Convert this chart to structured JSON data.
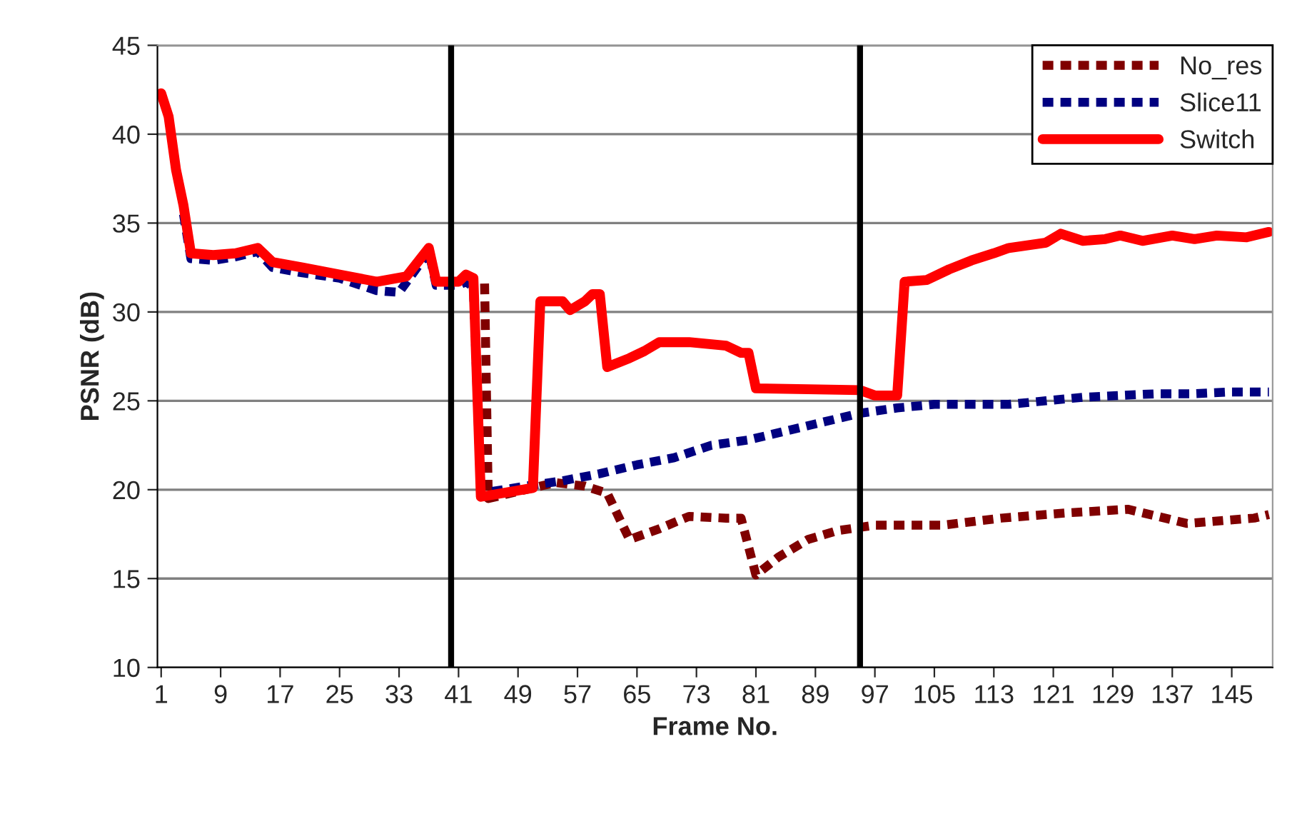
{
  "chart_data": {
    "type": "line",
    "xlabel": "Frame No.",
    "ylabel": "PSNR (dB)",
    "xlim": [
      0.5,
      150.5
    ],
    "xticks": [
      1,
      9,
      17,
      25,
      33,
      41,
      49,
      57,
      65,
      73,
      81,
      89,
      97,
      105,
      113,
      121,
      129,
      137,
      145
    ],
    "ylim": [
      10,
      45
    ],
    "yticks": [
      10,
      15,
      20,
      25,
      30,
      35,
      40,
      45
    ],
    "grid": "y",
    "legend": "top right",
    "marker": "none",
    "ref_lines": [
      {
        "axis": "x",
        "value": 40,
        "color": "#000000",
        "line_style": "solid"
      },
      {
        "axis": "x",
        "value": 95,
        "color": "#000000",
        "line_style": "solid"
      }
    ],
    "series": [
      {
        "name": "No_res",
        "color": "#800000",
        "line_style": "dashed",
        "x": [
          44.5,
          45,
          54,
          58,
          61,
          64,
          68,
          72,
          77,
          79,
          81,
          84,
          88,
          92,
          97,
          106,
          114,
          123,
          131,
          139,
          148,
          150
        ],
        "values": [
          31.6,
          19.5,
          20.4,
          20.2,
          19.8,
          17.2,
          17.8,
          18.5,
          18.4,
          18.4,
          15.2,
          16.2,
          17.2,
          17.7,
          18.0,
          18.0,
          18.4,
          18.7,
          18.9,
          18.1,
          18.4,
          18.6
        ]
      },
      {
        "name": "Slice11",
        "color": "#000080",
        "line_style": "dashed",
        "x": [
          4,
          5,
          8,
          11,
          14,
          16,
          20,
          25,
          30,
          33,
          37,
          38,
          41,
          42,
          43,
          44,
          50,
          55,
          60,
          65,
          70,
          75,
          80,
          85,
          90,
          95,
          100,
          105,
          110,
          115,
          120,
          125,
          130,
          135,
          140,
          145,
          150
        ],
        "values": [
          35.5,
          33.0,
          32.9,
          33.1,
          33.4,
          32.5,
          32.2,
          31.9,
          31.2,
          31.1,
          33.4,
          31.5,
          31.5,
          31.7,
          31.4,
          19.8,
          20.2,
          20.5,
          20.9,
          21.4,
          21.8,
          22.5,
          22.8,
          23.3,
          23.8,
          24.3,
          24.6,
          24.8,
          24.8,
          24.8,
          25.0,
          25.2,
          25.3,
          25.4,
          25.4,
          25.5,
          25.5
        ]
      },
      {
        "name": "Switch",
        "color": "#ff0000",
        "line_style": "solid",
        "x": [
          1,
          2,
          3,
          4,
          5,
          8,
          11,
          14,
          16,
          20,
          25,
          30,
          34,
          37,
          38,
          41,
          42,
          43,
          44,
          51,
          52,
          55,
          56,
          58,
          59,
          60,
          61,
          64,
          66,
          68,
          72,
          77,
          79,
          80,
          81,
          95,
          97,
          100,
          101,
          104,
          107,
          110,
          113,
          115,
          120,
          122,
          125,
          128,
          130,
          133,
          137,
          140,
          143,
          147,
          150
        ],
        "values": [
          42.3,
          41,
          38,
          36,
          33.3,
          33.2,
          33.3,
          33.6,
          32.8,
          32.5,
          32.1,
          31.7,
          32.0,
          33.6,
          31.7,
          31.7,
          32.1,
          31.9,
          19.6,
          20.1,
          30.6,
          30.6,
          30.1,
          30.6,
          31.0,
          31.0,
          26.9,
          27.4,
          27.8,
          28.3,
          28.3,
          28.1,
          27.7,
          27.7,
          25.7,
          25.6,
          25.3,
          25.3,
          31.7,
          31.8,
          32.4,
          32.9,
          33.3,
          33.6,
          33.9,
          34.4,
          34.0,
          34.1,
          34.3,
          34.0,
          34.3,
          34.1,
          34.3,
          34.2,
          34.5
        ]
      }
    ]
  }
}
